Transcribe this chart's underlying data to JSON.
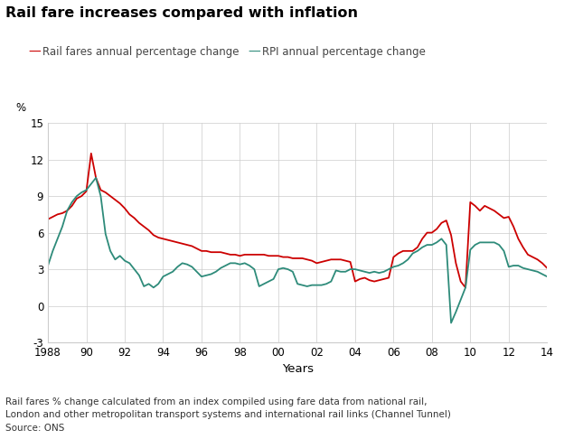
{
  "title": "Rail fare increases compared with inflation",
  "ylabel": "%",
  "xlabel": "Years",
  "footnote1": "Rail fares % change calculated from an index compiled using fare data from national rail,",
  "footnote2": "London and other metropolitan transport systems and international rail links (Channel Tunnel)",
  "footnote3": "Source: ONS",
  "rail_color": "#cc0000",
  "rpi_color": "#2e8b7a",
  "legend_rail": "Rail fares annual percentage change",
  "legend_rpi": "RPI annual percentage change",
  "years": [
    1988.0,
    1988.25,
    1988.5,
    1988.75,
    1989.0,
    1989.25,
    1989.5,
    1989.75,
    1990.0,
    1990.25,
    1990.5,
    1990.75,
    1991.0,
    1991.25,
    1991.5,
    1991.75,
    1992.0,
    1992.25,
    1992.5,
    1992.75,
    1993.0,
    1993.25,
    1993.5,
    1993.75,
    1994.0,
    1994.25,
    1994.5,
    1994.75,
    1995.0,
    1995.25,
    1995.5,
    1995.75,
    1996.0,
    1996.25,
    1996.5,
    1996.75,
    1997.0,
    1997.25,
    1997.5,
    1997.75,
    1998.0,
    1998.25,
    1998.5,
    1998.75,
    1999.0,
    1999.25,
    1999.5,
    1999.75,
    2000.0,
    2000.25,
    2000.5,
    2000.75,
    2001.0,
    2001.25,
    2001.5,
    2001.75,
    2002.0,
    2002.25,
    2002.5,
    2002.75,
    2003.0,
    2003.25,
    2003.5,
    2003.75,
    2004.0,
    2004.25,
    2004.5,
    2004.75,
    2005.0,
    2005.25,
    2005.5,
    2005.75,
    2006.0,
    2006.25,
    2006.5,
    2006.75,
    2007.0,
    2007.25,
    2007.5,
    2007.75,
    2008.0,
    2008.25,
    2008.5,
    2008.75,
    2009.0,
    2009.25,
    2009.5,
    2009.75,
    2010.0,
    2010.25,
    2010.5,
    2010.75,
    2011.0,
    2011.25,
    2011.5,
    2011.75,
    2012.0,
    2012.25,
    2012.5,
    2012.75,
    2013.0,
    2013.25,
    2013.5,
    2013.75,
    2014.0
  ],
  "rail_fares": [
    7.1,
    7.3,
    7.5,
    7.6,
    7.8,
    8.2,
    8.8,
    9.0,
    9.4,
    12.5,
    10.5,
    9.5,
    9.3,
    9.0,
    8.7,
    8.4,
    8.0,
    7.5,
    7.2,
    6.8,
    6.5,
    6.2,
    5.8,
    5.6,
    5.5,
    5.4,
    5.3,
    5.2,
    5.1,
    5.0,
    4.9,
    4.7,
    4.5,
    4.5,
    4.4,
    4.4,
    4.4,
    4.3,
    4.2,
    4.2,
    4.1,
    4.2,
    4.2,
    4.2,
    4.2,
    4.2,
    4.1,
    4.1,
    4.1,
    4.0,
    4.0,
    3.9,
    3.9,
    3.9,
    3.8,
    3.7,
    3.5,
    3.6,
    3.7,
    3.8,
    3.8,
    3.8,
    3.7,
    3.6,
    2.0,
    2.2,
    2.3,
    2.1,
    2.0,
    2.1,
    2.2,
    2.3,
    4.0,
    4.3,
    4.5,
    4.5,
    4.5,
    4.8,
    5.5,
    6.0,
    6.0,
    6.3,
    6.8,
    7.0,
    5.8,
    3.5,
    2.0,
    1.5,
    8.5,
    8.2,
    7.8,
    8.2,
    8.0,
    7.8,
    7.5,
    7.2,
    7.3,
    6.5,
    5.5,
    4.8,
    4.2,
    4.0,
    3.8,
    3.5,
    3.1
  ],
  "rpi": [
    3.3,
    4.5,
    5.5,
    6.5,
    7.8,
    8.5,
    9.0,
    9.3,
    9.5,
    10.0,
    10.5,
    9.0,
    5.9,
    4.5,
    3.8,
    4.1,
    3.7,
    3.5,
    3.0,
    2.5,
    1.6,
    1.8,
    1.5,
    1.8,
    2.4,
    2.6,
    2.8,
    3.2,
    3.5,
    3.4,
    3.2,
    2.8,
    2.4,
    2.5,
    2.6,
    2.8,
    3.1,
    3.3,
    3.5,
    3.5,
    3.4,
    3.5,
    3.3,
    3.0,
    1.6,
    1.8,
    2.0,
    2.2,
    3.0,
    3.1,
    3.0,
    2.8,
    1.8,
    1.7,
    1.6,
    1.7,
    1.7,
    1.7,
    1.8,
    2.0,
    2.9,
    2.8,
    2.8,
    3.0,
    3.0,
    2.9,
    2.8,
    2.7,
    2.8,
    2.7,
    2.8,
    3.0,
    3.2,
    3.3,
    3.5,
    3.8,
    4.3,
    4.5,
    4.8,
    5.0,
    5.0,
    5.2,
    5.5,
    5.0,
    -1.4,
    -0.5,
    0.5,
    1.5,
    4.6,
    5.0,
    5.2,
    5.2,
    5.2,
    5.2,
    5.0,
    4.5,
    3.2,
    3.3,
    3.3,
    3.1,
    3.0,
    2.9,
    2.8,
    2.6,
    2.4
  ],
  "xlim": [
    1988,
    2014
  ],
  "ylim": [
    -3,
    15
  ],
  "yticks": [
    -3,
    0,
    3,
    6,
    9,
    12,
    15
  ],
  "xticks": [
    1988,
    1990,
    1992,
    1994,
    1996,
    1998,
    2000,
    2002,
    2004,
    2006,
    2008,
    2010,
    2012,
    2014
  ],
  "xticklabels": [
    "1988",
    "90",
    "92",
    "94",
    "96",
    "98",
    "00",
    "02",
    "04",
    "06",
    "08",
    "10",
    "12",
    "14"
  ],
  "background_color": "#ffffff",
  "grid_color": "#cccccc"
}
